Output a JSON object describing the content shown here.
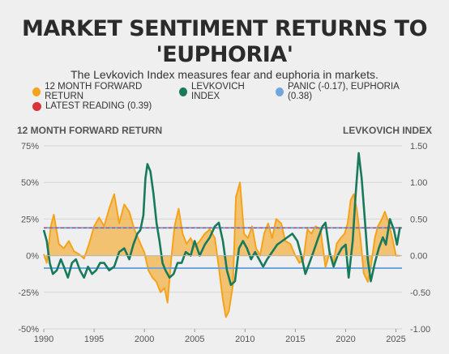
{
  "title_line1": "MARKET SENTIMENT RETURNS TO",
  "title_line2": "'EUPHORIA'",
  "subtitle": "The Levkovich Index measures fear and euphoria in markets.",
  "legend": {
    "forward_return": "12 MONTH FORWARD RETURN",
    "levkovich": "LEVKOVICH INDEX",
    "panic_euphoria": "PANIC (-0.17), EUPHORIA (0.38)",
    "latest": "LATEST READING (0.39)"
  },
  "colors": {
    "orange": "#f5a31a",
    "green": "#177a5c",
    "blue": "#6fa6dc",
    "red": "#d9343b",
    "background": "#efefef"
  },
  "chart_data": {
    "type": "line",
    "x_axis": {
      "range": [
        1990,
        2025.6
      ],
      "ticks": [
        1990,
        1995,
        2000,
        2005,
        2010,
        2015,
        2020,
        2025
      ]
    },
    "y_left": {
      "title": "12 MONTH FORWARD RETURN",
      "range": [
        -50,
        75
      ],
      "ticks": [
        -50,
        -25,
        0,
        25,
        50,
        75
      ],
      "tick_labels": [
        "-50%",
        "-25%",
        "0%",
        "25%",
        "50%",
        "75%"
      ]
    },
    "y_right": {
      "title": "LEVKOVICH INDEX",
      "range": [
        -1.0,
        1.5
      ],
      "ticks": [
        -1.0,
        -0.5,
        0.0,
        0.5,
        1.0,
        1.5
      ],
      "tick_labels": [
        "-1.00",
        "-0.50",
        "0.00",
        "0.50",
        "1.00",
        "1.50"
      ]
    },
    "thresholds": {
      "panic": -0.17,
      "euphoria": 0.38
    },
    "latest_reading": {
      "x": 2025.4,
      "value": 0.39
    },
    "series": [
      {
        "name": "12 MONTH FORWARD RETURN",
        "axis": "left",
        "fill": "area-to-zero",
        "points": [
          [
            1990.0,
            1
          ],
          [
            1990.3,
            -5
          ],
          [
            1990.7,
            20
          ],
          [
            1991.0,
            28
          ],
          [
            1991.5,
            8
          ],
          [
            1992.0,
            5
          ],
          [
            1992.5,
            10
          ],
          [
            1993.0,
            3
          ],
          [
            1993.5,
            1
          ],
          [
            1994.0,
            -2
          ],
          [
            1994.5,
            8
          ],
          [
            1995.0,
            20
          ],
          [
            1995.5,
            26
          ],
          [
            1996.0,
            20
          ],
          [
            1996.5,
            32
          ],
          [
            1997.0,
            42
          ],
          [
            1997.5,
            22
          ],
          [
            1998.0,
            35
          ],
          [
            1998.5,
            30
          ],
          [
            1999.0,
            18
          ],
          [
            1999.5,
            10
          ],
          [
            2000.0,
            2
          ],
          [
            2000.4,
            -10
          ],
          [
            2000.8,
            -15
          ],
          [
            2001.2,
            -18
          ],
          [
            2001.6,
            -25
          ],
          [
            2002.0,
            -22
          ],
          [
            2002.3,
            -32
          ],
          [
            2002.7,
            0
          ],
          [
            2003.0,
            20
          ],
          [
            2003.4,
            32
          ],
          [
            2003.8,
            15
          ],
          [
            2004.2,
            8
          ],
          [
            2004.6,
            12
          ],
          [
            2005.0,
            6
          ],
          [
            2005.5,
            10
          ],
          [
            2006.0,
            15
          ],
          [
            2006.5,
            18
          ],
          [
            2007.0,
            12
          ],
          [
            2007.4,
            -8
          ],
          [
            2007.8,
            -30
          ],
          [
            2008.1,
            -42
          ],
          [
            2008.4,
            -38
          ],
          [
            2008.8,
            -20
          ],
          [
            2009.1,
            40
          ],
          [
            2009.5,
            50
          ],
          [
            2009.9,
            15
          ],
          [
            2010.3,
            12
          ],
          [
            2010.7,
            20
          ],
          [
            2011.1,
            5
          ],
          [
            2011.5,
            0
          ],
          [
            2011.9,
            15
          ],
          [
            2012.3,
            22
          ],
          [
            2012.7,
            12
          ],
          [
            2013.1,
            25
          ],
          [
            2013.6,
            22
          ],
          [
            2014.0,
            10
          ],
          [
            2014.5,
            8
          ],
          [
            2015.0,
            0
          ],
          [
            2015.4,
            -5
          ],
          [
            2015.8,
            -3
          ],
          [
            2016.2,
            18
          ],
          [
            2016.6,
            15
          ],
          [
            2017.0,
            20
          ],
          [
            2017.5,
            18
          ],
          [
            2018.0,
            -8
          ],
          [
            2018.4,
            2
          ],
          [
            2018.8,
            -5
          ],
          [
            2019.1,
            8
          ],
          [
            2019.5,
            12
          ],
          [
            2019.9,
            15
          ],
          [
            2020.2,
            22
          ],
          [
            2020.5,
            38
          ],
          [
            2020.8,
            42
          ],
          [
            2021.1,
            32
          ],
          [
            2021.5,
            10
          ],
          [
            2021.8,
            -12
          ],
          [
            2022.2,
            -18
          ],
          [
            2022.5,
            -8
          ],
          [
            2022.9,
            12
          ],
          [
            2023.2,
            20
          ],
          [
            2023.6,
            25
          ],
          [
            2023.9,
            30
          ],
          [
            2024.3,
            22
          ],
          [
            2024.7,
            10
          ],
          [
            2025.0,
            0
          ],
          [
            2025.4,
            0
          ]
        ]
      },
      {
        "name": "LEVKOVICH INDEX",
        "axis": "right",
        "points": [
          [
            1990.0,
            0.35
          ],
          [
            1990.3,
            0.2
          ],
          [
            1990.6,
            -0.1
          ],
          [
            1990.9,
            -0.25
          ],
          [
            1991.3,
            -0.2
          ],
          [
            1991.7,
            -0.05
          ],
          [
            1992.0,
            -0.15
          ],
          [
            1992.4,
            -0.3
          ],
          [
            1992.8,
            -0.1
          ],
          [
            1993.2,
            -0.05
          ],
          [
            1993.6,
            -0.2
          ],
          [
            1994.0,
            -0.3
          ],
          [
            1994.4,
            -0.15
          ],
          [
            1994.8,
            -0.25
          ],
          [
            1995.2,
            -0.2
          ],
          [
            1995.6,
            -0.1
          ],
          [
            1996.0,
            -0.1
          ],
          [
            1996.5,
            -0.2
          ],
          [
            1997.0,
            -0.15
          ],
          [
            1997.5,
            0.05
          ],
          [
            1998.0,
            0.1
          ],
          [
            1998.5,
            -0.05
          ],
          [
            1998.9,
            0.15
          ],
          [
            1999.3,
            0.3
          ],
          [
            1999.6,
            0.35
          ],
          [
            1999.9,
            0.55
          ],
          [
            2000.1,
            1.05
          ],
          [
            2000.3,
            1.25
          ],
          [
            2000.6,
            1.15
          ],
          [
            2000.9,
            0.85
          ],
          [
            2001.2,
            0.45
          ],
          [
            2001.5,
            0.2
          ],
          [
            2001.8,
            -0.1
          ],
          [
            2002.1,
            -0.2
          ],
          [
            2002.5,
            -0.3
          ],
          [
            2002.9,
            -0.25
          ],
          [
            2003.3,
            -0.1
          ],
          [
            2003.7,
            -0.1
          ],
          [
            2004.1,
            0.05
          ],
          [
            2004.6,
            0.0
          ],
          [
            2005.0,
            0.2
          ],
          [
            2005.5,
            0.0
          ],
          [
            2006.0,
            0.15
          ],
          [
            2006.5,
            0.25
          ],
          [
            2007.0,
            0.4
          ],
          [
            2007.4,
            0.45
          ],
          [
            2007.8,
            0.2
          ],
          [
            2008.2,
            -0.2
          ],
          [
            2008.6,
            -0.4
          ],
          [
            2009.0,
            -0.35
          ],
          [
            2009.4,
            0.1
          ],
          [
            2009.8,
            0.2
          ],
          [
            2010.2,
            0.1
          ],
          [
            2010.6,
            -0.05
          ],
          [
            2011.0,
            0.05
          ],
          [
            2011.4,
            -0.05
          ],
          [
            2011.8,
            -0.15
          ],
          [
            2012.2,
            -0.05
          ],
          [
            2012.7,
            0.05
          ],
          [
            2013.2,
            0.15
          ],
          [
            2013.7,
            0.2
          ],
          [
            2014.2,
            0.25
          ],
          [
            2014.7,
            0.3
          ],
          [
            2015.2,
            0.2
          ],
          [
            2015.6,
            0.0
          ],
          [
            2016.0,
            -0.25
          ],
          [
            2016.4,
            -0.1
          ],
          [
            2016.8,
            0.05
          ],
          [
            2017.3,
            0.25
          ],
          [
            2017.7,
            0.4
          ],
          [
            2018.0,
            0.45
          ],
          [
            2018.4,
            0.05
          ],
          [
            2018.8,
            -0.15
          ],
          [
            2019.2,
            0.0
          ],
          [
            2019.6,
            0.1
          ],
          [
            2020.0,
            0.15
          ],
          [
            2020.3,
            -0.3
          ],
          [
            2020.7,
            0.2
          ],
          [
            2021.0,
            0.85
          ],
          [
            2021.3,
            1.4
          ],
          [
            2021.6,
            1.05
          ],
          [
            2021.9,
            0.5
          ],
          [
            2022.2,
            -0.05
          ],
          [
            2022.5,
            -0.35
          ],
          [
            2022.9,
            -0.1
          ],
          [
            2023.3,
            0.1
          ],
          [
            2023.7,
            0.25
          ],
          [
            2024.0,
            0.15
          ],
          [
            2024.4,
            0.5
          ],
          [
            2024.8,
            0.35
          ],
          [
            2025.1,
            0.15
          ],
          [
            2025.4,
            0.39
          ]
        ]
      }
    ]
  }
}
